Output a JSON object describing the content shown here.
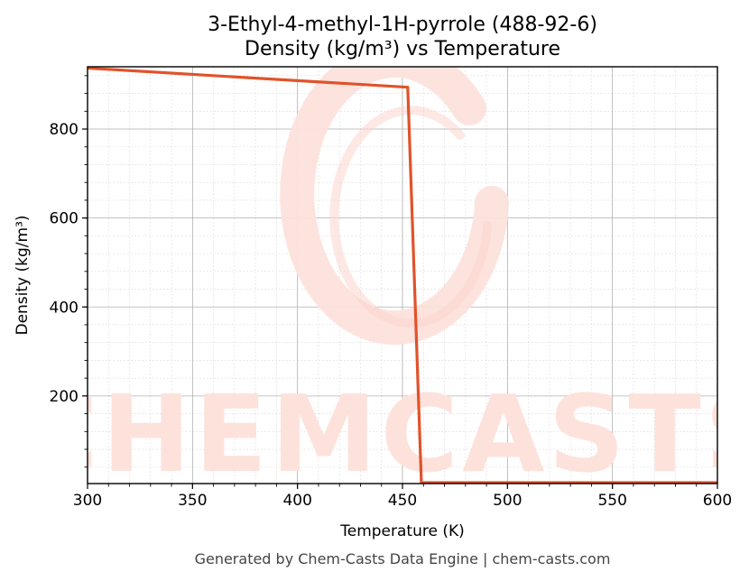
{
  "colors": {
    "series": "#e0532a",
    "watermark": "#fde2dc",
    "grid_major": "#b0b0b0",
    "grid_minor": "#dcdcdc",
    "axis": "#000000",
    "footer": "#444444"
  },
  "watermark": {
    "text": "CHEMCASTS"
  },
  "footer": {
    "text": "Generated by Chem-Casts Data Engine | chem-casts.com"
  },
  "chart_data": {
    "type": "line",
    "title": "3-Ethyl-4-methyl-1H-pyrrole (488-92-6)",
    "subtitle": "Density (kg/m³) vs Temperature",
    "xlabel": "Temperature (K)",
    "ylabel": "Density (kg/m³)",
    "xlim": [
      300,
      600
    ],
    "ylim": [
      3,
      940
    ],
    "xticks": [
      300,
      350,
      400,
      450,
      500,
      550,
      600
    ],
    "yticks": [
      200,
      400,
      600,
      800
    ],
    "grid": true,
    "minor_grid": true,
    "legend": "none",
    "series": [
      {
        "color": "#e0532a",
        "points": [
          [
            300,
            937
          ],
          [
            452.5,
            894
          ],
          [
            459,
            5
          ],
          [
            600,
            5
          ]
        ]
      }
    ]
  }
}
